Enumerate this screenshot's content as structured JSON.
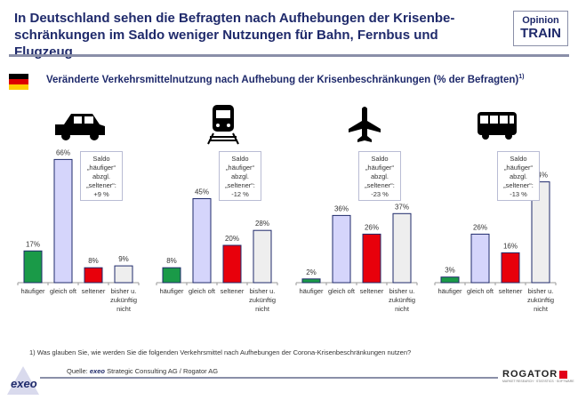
{
  "header": {
    "title": "In Deutschland sehen die Befragten nach Aufhebungen der Krisenbe-schränkungen im Saldo weniger Nutzungen für Bahn, Fernbus und Flugzeug",
    "badge_line1": "Opinion",
    "badge_line2": "TRAIN"
  },
  "subtitle": {
    "text": "Veränderte Verkehrsmittelnutzung nach Aufhebung der Krisenbeschränkungen (% der Befragten)",
    "footnote_mark": "1)"
  },
  "chart_data": [
    {
      "type": "bar",
      "icon": "car-icon",
      "categories": [
        "häufiger",
        "gleich oft",
        "seltener",
        "bisher u. zukünftig nicht"
      ],
      "values": [
        17,
        66,
        8,
        9
      ],
      "data_labels": [
        "17%",
        "66%",
        "8%",
        "9%"
      ],
      "saldo": [
        "Saldo",
        "„häufiger“",
        "abzgl.",
        "„seltener“:",
        "+9 %"
      ]
    },
    {
      "type": "bar",
      "icon": "train-icon",
      "categories": [
        "häufiger",
        "gleich oft",
        "seltener",
        "bisher u. zukünftig nicht"
      ],
      "values": [
        8,
        45,
        20,
        28
      ],
      "data_labels": [
        "8%",
        "45%",
        "20%",
        "28%"
      ],
      "saldo": [
        "Saldo",
        "„häufiger“",
        "abzgl.",
        "„seltener“:",
        "-12 %"
      ]
    },
    {
      "type": "bar",
      "icon": "plane-icon",
      "categories": [
        "häufiger",
        "gleich oft",
        "seltener",
        "bisher u. zukünftig nicht"
      ],
      "values": [
        2,
        36,
        26,
        37
      ],
      "data_labels": [
        "2%",
        "36%",
        "26%",
        "37%"
      ],
      "saldo": [
        "Saldo",
        "„häufiger“",
        "abzgl.",
        "„seltener“:",
        "-23 %"
      ]
    },
    {
      "type": "bar",
      "icon": "bus-icon",
      "categories": [
        "häufiger",
        "gleich oft",
        "seltener",
        "bisher u. zukünftig nicht"
      ],
      "values": [
        3,
        26,
        16,
        54
      ],
      "data_labels": [
        "3%",
        "26%",
        "16%",
        "54%"
      ],
      "saldo": [
        "Saldo",
        "„häufiger“",
        "abzgl.",
        "„seltener“:",
        "-13 %"
      ]
    }
  ],
  "colors": {
    "häufiger": "#1a9a48",
    "gleich oft": "#d5d5fb",
    "seltener": "#e8000b",
    "bisher u. zukünftig nicht": "#eeeeee",
    "border": "#1f2a6b"
  },
  "footer": {
    "footnote": "1)   Was glauben Sie, wie werden Sie die folgenden Verkehrsmittel nach Aufhebungen der Corona-Krisenbeschränkungen nutzen?",
    "source_prefix": "Quelle:",
    "source_brand": "exeo",
    "source_rest": "Strategic Consulting AG / Rogator AG",
    "logo_left": "exeo",
    "logo_right": "ROGATOR"
  }
}
